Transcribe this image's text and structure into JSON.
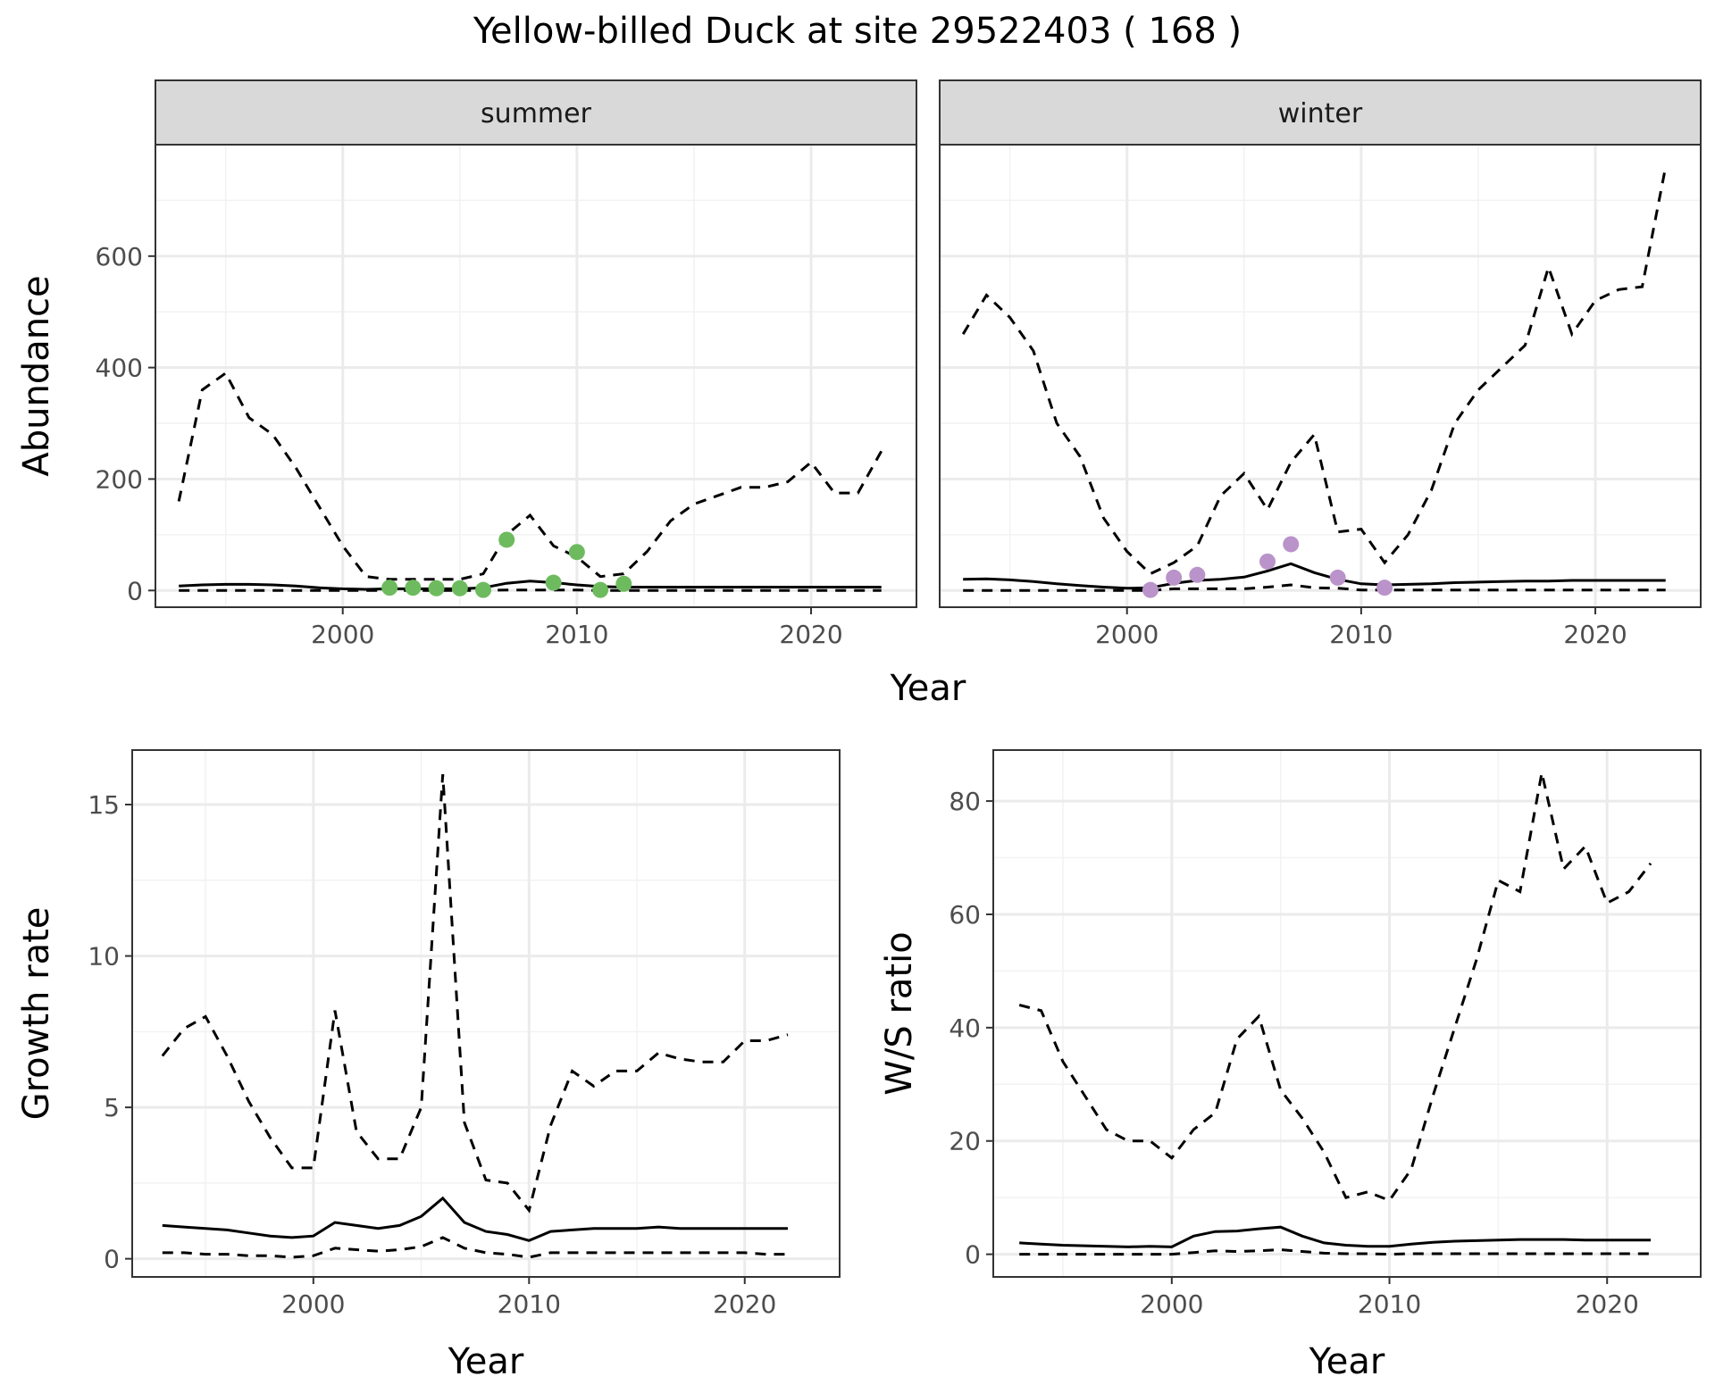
{
  "title": "Yellow-billed Duck at site 29522403 ( 168 )",
  "colors": {
    "summer_points": "#6dbb5e",
    "winter_points": "#b993c9"
  },
  "chart_data": [
    {
      "id": "abundance",
      "type": "line",
      "facets": [
        "summer",
        "winter"
      ],
      "xlabel": "Year",
      "ylabel": "Abundance",
      "xlim": [
        1992,
        2024.5
      ],
      "ylim": [
        -30,
        800
      ],
      "xticks": [
        2000,
        2010,
        2020
      ],
      "yticks": [
        0,
        200,
        400,
        600
      ],
      "panels": [
        {
          "facet": "summer",
          "x": [
            1993,
            1994,
            1995,
            1996,
            1997,
            1998,
            1999,
            2000,
            2001,
            2002,
            2003,
            2004,
            2005,
            2006,
            2007,
            2008,
            2009,
            2010,
            2011,
            2012,
            2013,
            2014,
            2015,
            2016,
            2017,
            2018,
            2019,
            2020,
            2021,
            2022,
            2023
          ],
          "mean": [
            8,
            10,
            11,
            11,
            10,
            8,
            5,
            3,
            2,
            3,
            3,
            3,
            3,
            5,
            13,
            17,
            14,
            10,
            7,
            6,
            6,
            6,
            6,
            6,
            6,
            6,
            6,
            6,
            6,
            6,
            6
          ],
          "lower": [
            0,
            0,
            0,
            0,
            0,
            0,
            0,
            0,
            0,
            0,
            0,
            0,
            0,
            0,
            1,
            1,
            1,
            1,
            0,
            0,
            0,
            0,
            0,
            0,
            0,
            0,
            0,
            0,
            0,
            0,
            0
          ],
          "upper": [
            160,
            360,
            390,
            310,
            280,
            220,
            150,
            80,
            25,
            20,
            20,
            20,
            20,
            30,
            100,
            135,
            80,
            60,
            25,
            30,
            70,
            125,
            155,
            170,
            185,
            185,
            195,
            230,
            175,
            175,
            250
          ],
          "points_x": [
            2002,
            2003,
            2004,
            2005,
            2006,
            2007,
            2009,
            2010,
            2011,
            2012
          ],
          "points_y": [
            5,
            5,
            4,
            4,
            1,
            91,
            14,
            69,
            1,
            12
          ]
        },
        {
          "facet": "winter",
          "x": [
            1993,
            1994,
            1995,
            1996,
            1997,
            1998,
            1999,
            2000,
            2001,
            2002,
            2003,
            2004,
            2005,
            2006,
            2007,
            2008,
            2009,
            2010,
            2011,
            2012,
            2013,
            2014,
            2015,
            2016,
            2017,
            2018,
            2019,
            2020,
            2021,
            2022,
            2023
          ],
          "mean": [
            20,
            21,
            19,
            16,
            12,
            9,
            6,
            4,
            5,
            13,
            18,
            20,
            24,
            35,
            48,
            32,
            20,
            12,
            10,
            11,
            12,
            14,
            15,
            16,
            17,
            17,
            18,
            18,
            18,
            18,
            18
          ],
          "lower": [
            0,
            0,
            0,
            0,
            0,
            0,
            0,
            0,
            0,
            3,
            3,
            3,
            3,
            6,
            10,
            5,
            4,
            1,
            1,
            1,
            1,
            1,
            1,
            1,
            1,
            1,
            1,
            1,
            1,
            1,
            1
          ],
          "upper": [
            460,
            530,
            490,
            430,
            300,
            240,
            130,
            70,
            30,
            50,
            80,
            170,
            210,
            145,
            230,
            280,
            105,
            110,
            50,
            100,
            180,
            300,
            360,
            400,
            440,
            580,
            460,
            520,
            540,
            545,
            760
          ],
          "points_x": [
            2001,
            2002,
            2003,
            2006,
            2007,
            2009,
            2011
          ],
          "points_y": [
            1,
            23,
            28,
            52,
            83,
            23,
            5
          ]
        }
      ]
    },
    {
      "id": "growth",
      "type": "line",
      "xlabel": "Year",
      "ylabel": "Growth rate",
      "xlim": [
        1991.6,
        2024.4
      ],
      "ylim": [
        -0.6,
        16.8
      ],
      "xticks": [
        2000,
        2010,
        2020
      ],
      "yticks": [
        0,
        5,
        10,
        15
      ],
      "x": [
        1993,
        1994,
        1995,
        1996,
        1997,
        1998,
        1999,
        2000,
        2001,
        2002,
        2003,
        2004,
        2005,
        2006,
        2007,
        2008,
        2009,
        2010,
        2011,
        2012,
        2013,
        2014,
        2015,
        2016,
        2017,
        2018,
        2019,
        2020,
        2021,
        2022
      ],
      "mean": [
        1.1,
        1.05,
        1.0,
        0.95,
        0.85,
        0.75,
        0.7,
        0.75,
        1.2,
        1.1,
        1.0,
        1.1,
        1.4,
        2.0,
        1.2,
        0.9,
        0.8,
        0.6,
        0.9,
        0.95,
        1.0,
        1.0,
        1.0,
        1.05,
        1.0,
        1.0,
        1.0,
        1.0,
        1.0,
        1.0
      ],
      "lower": [
        0.2,
        0.2,
        0.15,
        0.15,
        0.1,
        0.1,
        0.05,
        0.1,
        0.35,
        0.3,
        0.25,
        0.3,
        0.4,
        0.7,
        0.35,
        0.2,
        0.15,
        0.05,
        0.2,
        0.2,
        0.2,
        0.2,
        0.2,
        0.2,
        0.2,
        0.2,
        0.2,
        0.2,
        0.15,
        0.15
      ],
      "upper": [
        6.7,
        7.6,
        8.0,
        6.7,
        5.2,
        4.0,
        3.0,
        3.0,
        8.2,
        4.2,
        3.3,
        3.3,
        5.0,
        16.0,
        4.5,
        2.6,
        2.5,
        1.6,
        4.4,
        6.2,
        5.7,
        6.2,
        6.2,
        6.8,
        6.6,
        6.5,
        6.5,
        7.2,
        7.2,
        7.4
      ]
    },
    {
      "id": "ws_ratio",
      "type": "line",
      "xlabel": "Year",
      "ylabel": "W/S ratio",
      "xlim": [
        1991.8,
        2024.3
      ],
      "ylim": [
        -4,
        89
      ],
      "xticks": [
        2000,
        2010,
        2020
      ],
      "yticks": [
        0,
        20,
        40,
        60,
        80
      ],
      "x": [
        1993,
        1994,
        1995,
        1996,
        1997,
        1998,
        1999,
        2000,
        2001,
        2002,
        2003,
        2004,
        2005,
        2006,
        2007,
        2008,
        2009,
        2010,
        2011,
        2012,
        2013,
        2014,
        2015,
        2016,
        2017,
        2018,
        2019,
        2020,
        2021,
        2022
      ],
      "mean": [
        2.0,
        1.8,
        1.6,
        1.5,
        1.4,
        1.3,
        1.4,
        1.3,
        3.2,
        4.0,
        4.1,
        4.5,
        4.8,
        3.2,
        2.0,
        1.6,
        1.4,
        1.4,
        1.8,
        2.1,
        2.3,
        2.4,
        2.5,
        2.6,
        2.6,
        2.6,
        2.5,
        2.5,
        2.5,
        2.5
      ],
      "lower": [
        0,
        0,
        0,
        0,
        0,
        0,
        0,
        0,
        0.3,
        0.6,
        0.5,
        0.6,
        0.8,
        0.5,
        0.2,
        0.1,
        0.1,
        0,
        0.1,
        0.1,
        0.1,
        0.1,
        0.1,
        0.1,
        0.1,
        0.1,
        0.1,
        0.1,
        0.1,
        0.1
      ],
      "upper": [
        44,
        43,
        34,
        28,
        22,
        20,
        20,
        17,
        22,
        25,
        38,
        42,
        29,
        24,
        18,
        10,
        11,
        9.5,
        15,
        28,
        40,
        52,
        66,
        64,
        85,
        68,
        72,
        62,
        64,
        69
      ]
    }
  ]
}
